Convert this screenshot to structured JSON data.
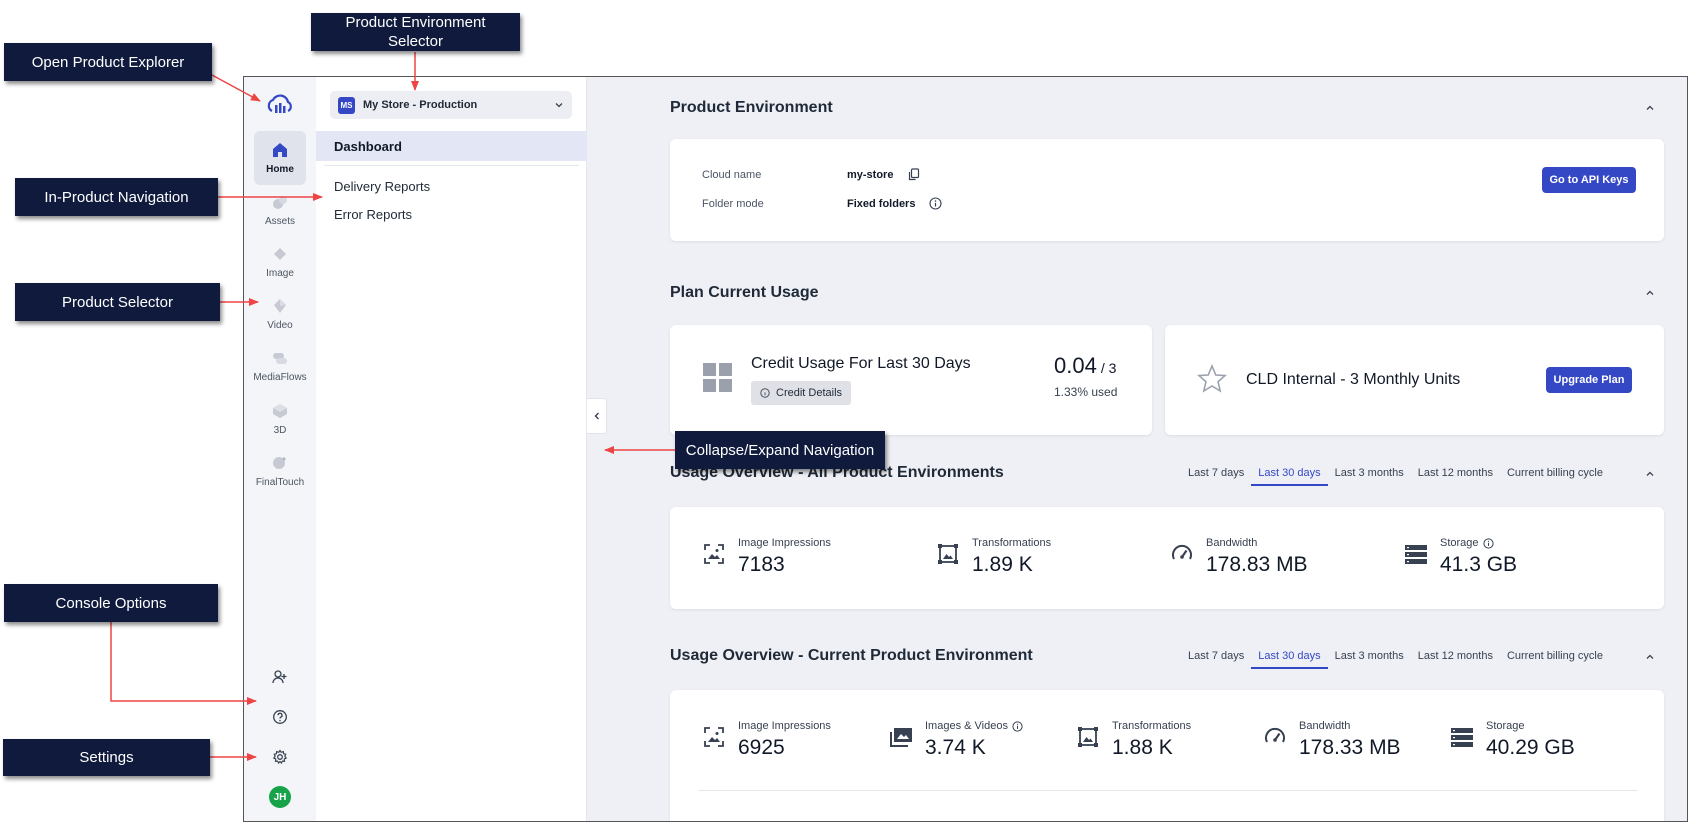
{
  "annotations": {
    "open_product_explorer": "Open Product Explorer",
    "product_environment_selector": "Product Environment Selector",
    "in_product_navigation": "In-Product Navigation",
    "product_selector": "Product Selector",
    "collapse_expand_navigation": "Collapse/Expand Navigation",
    "console_options": "Console Options",
    "settings": "Settings"
  },
  "rail": {
    "items": [
      {
        "label": "Home",
        "icon": "home-icon"
      },
      {
        "label": "Assets",
        "icon": "assets-icon"
      },
      {
        "label": "Image",
        "icon": "image-icon"
      },
      {
        "label": "Video",
        "icon": "video-icon"
      },
      {
        "label": "MediaFlows",
        "icon": "mediaflows-icon"
      },
      {
        "label": "3D",
        "icon": "3d-icon"
      },
      {
        "label": "FinalTouch",
        "icon": "finaltouch-icon"
      }
    ],
    "avatar_initials": "JH"
  },
  "nav": {
    "env_badge": "MS",
    "env_label": "My Store - Production",
    "items": [
      "Dashboard",
      "Delivery Reports",
      "Error Reports"
    ]
  },
  "product_environment": {
    "title": "Product Environment",
    "cloud_name_label": "Cloud name",
    "cloud_name_value": "my-store",
    "folder_mode_label": "Folder mode",
    "folder_mode_value": "Fixed folders",
    "api_keys_button": "Go to API Keys"
  },
  "plan_usage": {
    "title": "Plan Current Usage",
    "credit_title": "Credit Usage For Last 30 Days",
    "credit_details_button": "Credit Details",
    "credit_used": "0.04",
    "credit_total": "/ 3",
    "credit_percent": "1.33% used",
    "plan_name": "CLD Internal - 3 Monthly Units",
    "upgrade_button": "Upgrade Plan"
  },
  "tabs": [
    "Last 7 days",
    "Last 30 days",
    "Last 3 months",
    "Last 12 months",
    "Current billing cycle"
  ],
  "usage_all": {
    "title": "Usage Overview - All Product Environments",
    "stats": [
      {
        "label": "Image Impressions",
        "value": "7183"
      },
      {
        "label": "Transformations",
        "value": "1.89 K"
      },
      {
        "label": "Bandwidth",
        "value": "178.83 MB"
      },
      {
        "label": "Storage",
        "value": "41.3 GB"
      }
    ]
  },
  "usage_current": {
    "title": "Usage Overview - Current Product Environment",
    "stats": [
      {
        "label": "Image Impressions",
        "value": "6925"
      },
      {
        "label": "Images & Videos",
        "value": "3.74 K"
      },
      {
        "label": "Transformations",
        "value": "1.88 K"
      },
      {
        "label": "Bandwidth",
        "value": "178.33 MB"
      },
      {
        "label": "Storage",
        "value": "40.29 GB"
      }
    ]
  },
  "colors": {
    "accent": "#3448c5",
    "annotation_bg": "#0f1a3d",
    "arrow": "#ef4444",
    "avatar": "#16a34a"
  }
}
